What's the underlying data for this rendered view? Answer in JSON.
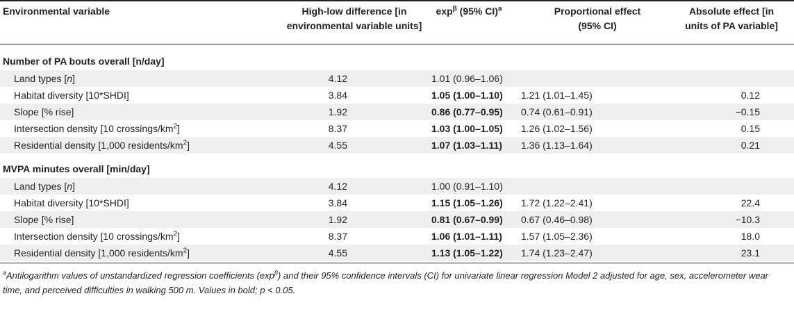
{
  "header": {
    "col1": "Environmental variable",
    "col2_line1": "High-low difference [in",
    "col2_line2": "environmental variable units]",
    "col3_base": "exp",
    "col3_sup1": "β",
    "col3_rest": " (95% CI)",
    "col3_sup2": "a",
    "col4_line1": "Proportional effect",
    "col4_line2": "(95% CI)",
    "col5_line1": "Absolute effect [in",
    "col5_line2": "units of PA variable]"
  },
  "sections": [
    {
      "title": "Number of PA bouts overall [n/day]",
      "rows": [
        {
          "var_pre": "Land types [",
          "var_italic": "n",
          "var_post": "]",
          "var_sup": "",
          "var_end": "",
          "diff": "4.12",
          "exp": "1.01 (0.96–1.06)",
          "bold": false,
          "prop": "",
          "abs": ""
        },
        {
          "var_pre": "Habitat diversity [10*SHDI]",
          "var_italic": "",
          "var_post": "",
          "var_sup": "",
          "var_end": "",
          "diff": "3.84",
          "exp": "1.05 (1.00–1.10)",
          "bold": true,
          "prop": "1.21 (1.01–1.45)",
          "abs": "0.12"
        },
        {
          "var_pre": "Slope [% rise]",
          "var_italic": "",
          "var_post": "",
          "var_sup": "",
          "var_end": "",
          "diff": "1.92",
          "exp": "0.86 (0.77–0.95)",
          "bold": true,
          "prop": "0.74 (0.61–0.91)",
          "abs": "−0.15"
        },
        {
          "var_pre": "Intersection density [10 crossings/km",
          "var_italic": "",
          "var_post": "",
          "var_sup": "2",
          "var_end": "]",
          "diff": "8.37",
          "exp": "1.03 (1.00–1.05)",
          "bold": true,
          "prop": "1.26 (1.02–1.56)",
          "abs": "0.15"
        },
        {
          "var_pre": "Residential density [1,000 residents/km",
          "var_italic": "",
          "var_post": "",
          "var_sup": "2",
          "var_end": "]",
          "diff": "4.55",
          "exp": "1.07 (1.03–1.11)",
          "bold": true,
          "prop": "1.36 (1.13–1.64)",
          "abs": "0.21"
        }
      ]
    },
    {
      "title": "MVPA minutes overall [min/day]",
      "rows": [
        {
          "var_pre": "Land types [",
          "var_italic": "n",
          "var_post": "]",
          "var_sup": "",
          "var_end": "",
          "diff": "4.12",
          "exp": "1.00 (0.91–1.10)",
          "bold": false,
          "prop": "",
          "abs": ""
        },
        {
          "var_pre": "Habitat diversity [10*SHDI]",
          "var_italic": "",
          "var_post": "",
          "var_sup": "",
          "var_end": "",
          "diff": "3.84",
          "exp": "1.15 (1.05–1.26)",
          "bold": true,
          "prop": "1.72 (1.22–2.41)",
          "abs": "22.4"
        },
        {
          "var_pre": "Slope [% rise]",
          "var_italic": "",
          "var_post": "",
          "var_sup": "",
          "var_end": "",
          "diff": "1.92",
          "exp": "0.81 (0.67–0.99)",
          "bold": true,
          "prop": "0.67 (0.46–0.98)",
          "abs": "−10.3"
        },
        {
          "var_pre": "Intersection density [10 crossings/km",
          "var_italic": "",
          "var_post": "",
          "var_sup": "2",
          "var_end": "]",
          "diff": "8.37",
          "exp": "1.06 (1.01–1.11)",
          "bold": true,
          "prop": "1.57 (1.05–2.36)",
          "abs": "18.0"
        },
        {
          "var_pre": "Residential density [1,000 residents/km",
          "var_italic": "",
          "var_post": "",
          "var_sup": "2",
          "var_end": "]",
          "diff": "4.55",
          "exp": "1.13 (1.05–1.22)",
          "bold": true,
          "prop": "1.74 (1.23–2.47)",
          "abs": "23.1"
        }
      ]
    }
  ],
  "footnote": {
    "marker": "a",
    "text1": "Antilogarithm values of unstandardized regression coefficients (exp",
    "sup": "β",
    "text2": ") and their 95% confidence intervals (CI) for univariate linear regression Model 2 adjusted for age, sex, accelerometer wear time, and perceived difficulties in walking 500 m. Values in bold; p < 0.05."
  },
  "colors": {
    "text": "#231f20",
    "shade": "#eef0f0",
    "rule": "#231f20"
  }
}
